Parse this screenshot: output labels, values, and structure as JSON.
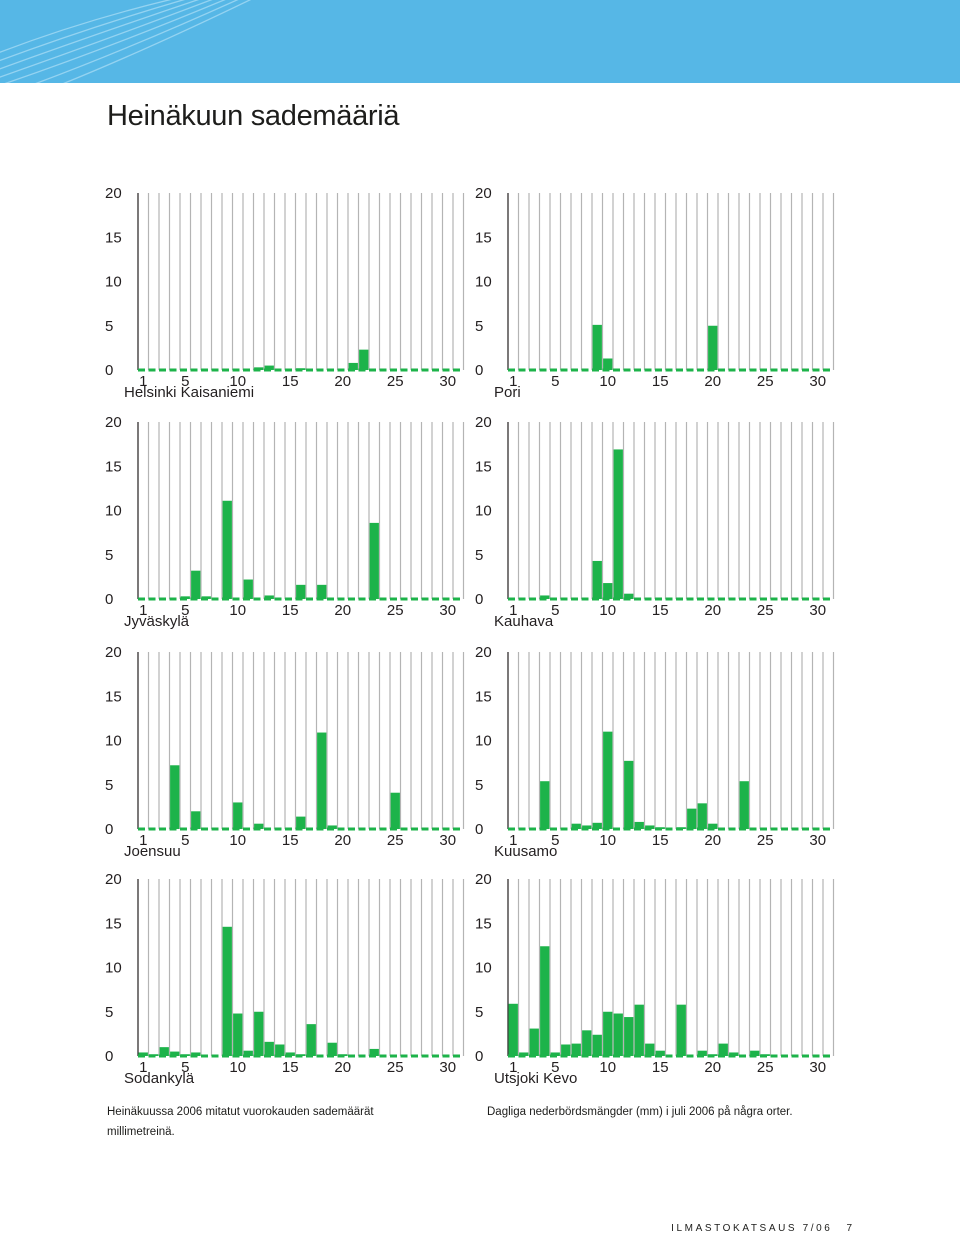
{
  "page": {
    "title": "Heinäkuun sademääriä",
    "caption_fi": "Heinäkuussa 2006 mitatut vuorokauden sademäärät millimetreinä.",
    "caption_sv": "Dagliga nederbördsmängder (mm) i juli 2006 på några orter.",
    "footer_publication": "ILMASTOKATSAUS 7/06",
    "footer_page": "7",
    "colors": {
      "banner": "#56b7e6",
      "bar": "#1db34a",
      "grid": "#b4b4b4",
      "axis": "#231f20"
    }
  },
  "chart_data": [
    {
      "type": "bar",
      "title": "Helsinki Kaisaniemi",
      "ylim": [
        0,
        20
      ],
      "yticks": [
        0,
        5,
        10,
        15,
        20
      ],
      "xticks": [
        1,
        5,
        10,
        15,
        20,
        25,
        30
      ],
      "x": [
        1,
        2,
        3,
        4,
        5,
        6,
        7,
        8,
        9,
        10,
        11,
        12,
        13,
        14,
        15,
        16,
        17,
        18,
        19,
        20,
        21,
        22,
        23,
        24,
        25,
        26,
        27,
        28,
        29,
        30,
        31
      ],
      "values": [
        0,
        0,
        0,
        0,
        0,
        0,
        0,
        0,
        0,
        0,
        0,
        0.3,
        0.5,
        0,
        0,
        0.2,
        0,
        0,
        0,
        0,
        0.8,
        2.3,
        0,
        0,
        0,
        0,
        0,
        0,
        0,
        0,
        0
      ]
    },
    {
      "type": "bar",
      "title": "Pori",
      "ylim": [
        0,
        20
      ],
      "yticks": [
        0,
        5,
        10,
        15,
        20
      ],
      "xticks": [
        1,
        5,
        10,
        15,
        20,
        25,
        30
      ],
      "x": [
        1,
        2,
        3,
        4,
        5,
        6,
        7,
        8,
        9,
        10,
        11,
        12,
        13,
        14,
        15,
        16,
        17,
        18,
        19,
        20,
        21,
        22,
        23,
        24,
        25,
        26,
        27,
        28,
        29,
        30,
        31
      ],
      "values": [
        0,
        0,
        0,
        0,
        0,
        0,
        0,
        0,
        5.1,
        1.3,
        0,
        0,
        0,
        0,
        0,
        0,
        0,
        0,
        0,
        5.0,
        0,
        0,
        0,
        0,
        0,
        0,
        0,
        0,
        0,
        0,
        0
      ]
    },
    {
      "type": "bar",
      "title": "Jyväskylä",
      "ylim": [
        0,
        20
      ],
      "yticks": [
        0,
        5,
        10,
        15,
        20
      ],
      "xticks": [
        1,
        5,
        10,
        15,
        20,
        25,
        30
      ],
      "x": [
        1,
        2,
        3,
        4,
        5,
        6,
        7,
        8,
        9,
        10,
        11,
        12,
        13,
        14,
        15,
        16,
        17,
        18,
        19,
        20,
        21,
        22,
        23,
        24,
        25,
        26,
        27,
        28,
        29,
        30,
        31
      ],
      "values": [
        0,
        0,
        0,
        0,
        0.3,
        3.2,
        0.3,
        0,
        11.1,
        0,
        2.2,
        0,
        0.4,
        0,
        0,
        1.6,
        0,
        1.6,
        0,
        0,
        0,
        0,
        8.6,
        0,
        0,
        0,
        0,
        0,
        0,
        0,
        0
      ]
    },
    {
      "type": "bar",
      "title": "Kauhava",
      "ylim": [
        0,
        20
      ],
      "yticks": [
        0,
        5,
        10,
        15,
        20
      ],
      "xticks": [
        1,
        5,
        10,
        15,
        20,
        25,
        30
      ],
      "x": [
        1,
        2,
        3,
        4,
        5,
        6,
        7,
        8,
        9,
        10,
        11,
        12,
        13,
        14,
        15,
        16,
        17,
        18,
        19,
        20,
        21,
        22,
        23,
        24,
        25,
        26,
        27,
        28,
        29,
        30,
        31
      ],
      "values": [
        0,
        0,
        0,
        0.4,
        0,
        0,
        0,
        0,
        4.3,
        1.8,
        16.9,
        0.6,
        0,
        0,
        0,
        0,
        0,
        0,
        0,
        0,
        0,
        0,
        0,
        0,
        0,
        0,
        0,
        0,
        0,
        0,
        0
      ]
    },
    {
      "type": "bar",
      "title": "Joensuu",
      "ylim": [
        0,
        20
      ],
      "yticks": [
        0,
        5,
        10,
        15,
        20
      ],
      "xticks": [
        1,
        5,
        10,
        15,
        20,
        25,
        30
      ],
      "x": [
        1,
        2,
        3,
        4,
        5,
        6,
        7,
        8,
        9,
        10,
        11,
        12,
        13,
        14,
        15,
        16,
        17,
        18,
        19,
        20,
        21,
        22,
        23,
        24,
        25,
        26,
        27,
        28,
        29,
        30,
        31
      ],
      "values": [
        0,
        0,
        0,
        7.2,
        0,
        2.0,
        0,
        0,
        0,
        3.0,
        0,
        0.6,
        0,
        0,
        0,
        1.4,
        0,
        10.9,
        0.4,
        0,
        0,
        0,
        0,
        0,
        4.1,
        0,
        0,
        0,
        0,
        0,
        0
      ]
    },
    {
      "type": "bar",
      "title": "Kuusamo",
      "ylim": [
        0,
        20
      ],
      "yticks": [
        0,
        5,
        10,
        15,
        20
      ],
      "xticks": [
        1,
        5,
        10,
        15,
        20,
        25,
        30
      ],
      "x": [
        1,
        2,
        3,
        4,
        5,
        6,
        7,
        8,
        9,
        10,
        11,
        12,
        13,
        14,
        15,
        16,
        17,
        18,
        19,
        20,
        21,
        22,
        23,
        24,
        25,
        26,
        27,
        28,
        29,
        30,
        31
      ],
      "values": [
        0,
        0,
        0,
        5.4,
        0,
        0,
        0.6,
        0.4,
        0.7,
        11.0,
        0,
        7.7,
        0.8,
        0.4,
        0.2,
        0,
        0.2,
        2.3,
        2.9,
        0.6,
        0,
        0,
        5.4,
        0,
        0,
        0,
        0,
        0,
        0,
        0,
        0
      ]
    },
    {
      "type": "bar",
      "title": "Sodankylä",
      "ylim": [
        0,
        20
      ],
      "yticks": [
        0,
        5,
        10,
        15,
        20
      ],
      "xticks": [
        1,
        5,
        10,
        15,
        20,
        25,
        30
      ],
      "x": [
        1,
        2,
        3,
        4,
        5,
        6,
        7,
        8,
        9,
        10,
        11,
        12,
        13,
        14,
        15,
        16,
        17,
        18,
        19,
        20,
        21,
        22,
        23,
        24,
        25,
        26,
        27,
        28,
        29,
        30,
        31
      ],
      "values": [
        0.4,
        0.2,
        1.0,
        0.5,
        0.2,
        0.4,
        0,
        0,
        14.6,
        4.8,
        0.6,
        5.0,
        1.6,
        1.3,
        0.4,
        0.2,
        3.6,
        0,
        1.5,
        0.2,
        0,
        0,
        0.8,
        0,
        0,
        0,
        0,
        0,
        0,
        0,
        0
      ]
    },
    {
      "type": "bar",
      "title": "Utsjoki Kevo",
      "ylim": [
        0,
        20
      ],
      "yticks": [
        0,
        5,
        10,
        15,
        20
      ],
      "xticks": [
        1,
        5,
        10,
        15,
        20,
        25,
        30
      ],
      "x": [
        1,
        2,
        3,
        4,
        5,
        6,
        7,
        8,
        9,
        10,
        11,
        12,
        13,
        14,
        15,
        16,
        17,
        18,
        19,
        20,
        21,
        22,
        23,
        24,
        25,
        26,
        27,
        28,
        29,
        30,
        31
      ],
      "values": [
        5.9,
        0.4,
        3.1,
        12.4,
        0.4,
        1.3,
        1.4,
        2.9,
        2.4,
        5.0,
        4.8,
        4.4,
        5.8,
        1.4,
        0.6,
        0,
        5.8,
        0,
        0.6,
        0.2,
        1.4,
        0.4,
        0,
        0.6,
        0.2,
        0,
        0,
        0,
        0,
        0,
        0
      ]
    }
  ]
}
